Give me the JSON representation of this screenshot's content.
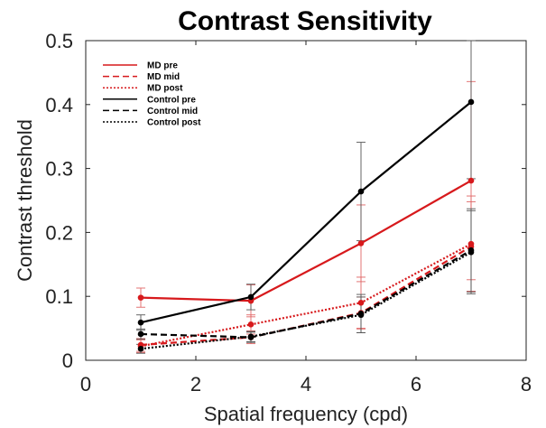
{
  "chart_data": {
    "type": "line",
    "title": "Contrast Sensitivity",
    "xlabel": "Spatial frequency (cpd)",
    "ylabel": "Contrast threshold",
    "xlim": [
      0,
      8
    ],
    "ylim": [
      0,
      0.5
    ],
    "xticks": [
      0,
      2,
      4,
      6,
      8
    ],
    "yticks": [
      0,
      0.1,
      0.2,
      0.3,
      0.4,
      0.5
    ],
    "x": [
      1,
      3,
      5,
      7
    ],
    "legend_position": "top-left",
    "grid": false,
    "series": [
      {
        "name": "MD pre",
        "color": "#d7191c",
        "dash": "solid",
        "values": [
          0.098,
          0.093,
          0.183,
          0.281
        ],
        "errors": [
          0.015,
          0.025,
          0.06,
          0.155
        ]
      },
      {
        "name": "MD mid",
        "color": "#d7191c",
        "dash": "dashed",
        "values": [
          0.024,
          0.036,
          0.074,
          0.178
        ],
        "errors": [
          0.01,
          0.01,
          0.025,
          0.07
        ]
      },
      {
        "name": "MD post",
        "color": "#d7191c",
        "dash": "dotted",
        "values": [
          0.022,
          0.056,
          0.09,
          0.182
        ],
        "errors": [
          0.01,
          0.015,
          0.04,
          0.075
        ]
      },
      {
        "name": "Control pre",
        "color": "#000000",
        "dash": "solid",
        "values": [
          0.059,
          0.099,
          0.264,
          0.404
        ],
        "errors": [
          0.012,
          0.02,
          0.077,
          0.12
        ]
      },
      {
        "name": "Control mid",
        "color": "#000000",
        "dash": "dashed",
        "values": [
          0.041,
          0.036,
          0.073,
          0.172
        ],
        "errors": [
          0.008,
          0.008,
          0.03,
          0.065
        ]
      },
      {
        "name": "Control post",
        "color": "#000000",
        "dash": "dotted",
        "values": [
          0.018,
          0.037,
          0.071,
          0.169
        ],
        "errors": [
          0.007,
          0.008,
          0.028,
          0.065
        ]
      }
    ]
  }
}
